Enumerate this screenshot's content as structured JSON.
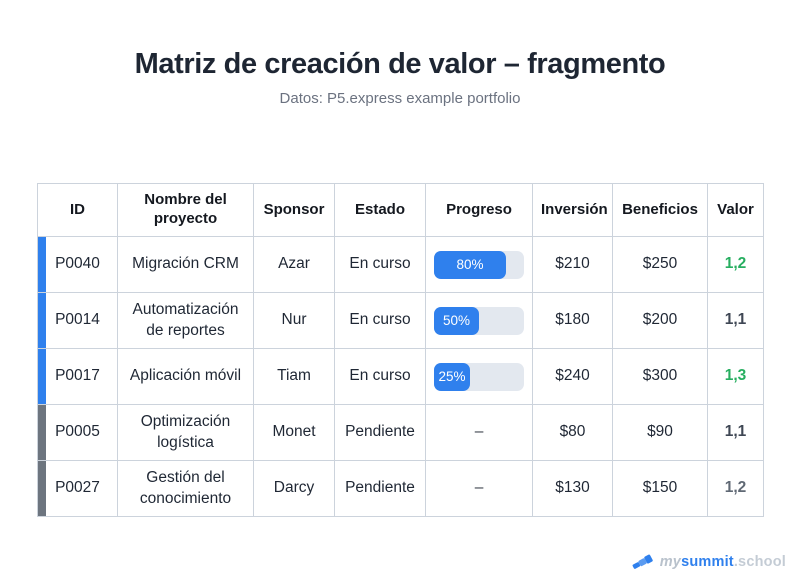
{
  "page": {
    "title": "Matriz de creación de valor – fragmento",
    "subtitle": "Datos: P5.express example portfolio"
  },
  "colors": {
    "accent_blue": "#2f80ed",
    "pending_gray": "#6d757f",
    "value_green": "#27ae60",
    "value_dark": "#3f4754",
    "value_gray": "#5f6874",
    "progress_track": "#e3e8ef",
    "title_dark": "#1e2633"
  },
  "table": {
    "columns": [
      "ID",
      "Nombre del proyecto",
      "Sponsor",
      "Estado",
      "Progreso",
      "Inversión",
      "Beneficios",
      "Valor"
    ],
    "rows": [
      {
        "id": "P0040",
        "name": "Migración CRM",
        "sponsor": "Azar",
        "status": "En curso",
        "progress_pct": 80,
        "progress_label": "80%",
        "inversion": "$210",
        "beneficios": "$250",
        "valor": "1,2",
        "valor_color": "#27ae60",
        "indicator_color": "#2f80ed"
      },
      {
        "id": "P0014",
        "name": "Automatización de reportes",
        "sponsor": "Nur",
        "status": "En curso",
        "progress_pct": 50,
        "progress_label": "50%",
        "inversion": "$180",
        "beneficios": "$200",
        "valor": "1,1",
        "valor_color": "#3f4754",
        "indicator_color": "#2f80ed"
      },
      {
        "id": "P0017",
        "name": "Aplicación móvil",
        "sponsor": "Tiam",
        "status": "En curso",
        "progress_pct": 25,
        "progress_label": "25%",
        "inversion": "$240",
        "beneficios": "$300",
        "valor": "1,3",
        "valor_color": "#27ae60",
        "indicator_color": "#2f80ed"
      },
      {
        "id": "P0005",
        "name": "Optimización logística",
        "sponsor": "Monet",
        "status": "Pendiente",
        "progress_display": "–",
        "inversion": "$80",
        "beneficios": "$90",
        "valor": "1,1",
        "valor_color": "#3f4754",
        "indicator_color": "#6d757f"
      },
      {
        "id": "P0027",
        "name": "Gestión del conocimiento",
        "sponsor": "Darcy",
        "status": "Pendiente",
        "progress_display": "–",
        "inversion": "$130",
        "beneficios": "$150",
        "valor": "1,2",
        "valor_color": "#5f6874",
        "indicator_color": "#6d757f"
      }
    ]
  },
  "footer": {
    "brand_prefix": "my",
    "brand_main": "summit",
    "brand_suffix": ".school",
    "logo_icon": "telescope-icon"
  },
  "chart_data": {
    "type": "table",
    "title": "Matriz de creación de valor – fragmento",
    "subtitle": "Datos: P5.express example portfolio",
    "columns": [
      "ID",
      "Nombre del proyecto",
      "Sponsor",
      "Estado",
      "Progreso",
      "Inversión",
      "Beneficios",
      "Valor"
    ],
    "rows": [
      [
        "P0040",
        "Migración CRM",
        "Azar",
        "En curso",
        "80%",
        "$210",
        "$250",
        "1,2"
      ],
      [
        "P0014",
        "Automatización de reportes",
        "Nur",
        "En curso",
        "50%",
        "$180",
        "$200",
        "1,1"
      ],
      [
        "P0017",
        "Aplicación móvil",
        "Tiam",
        "En curso",
        "25%",
        "$240",
        "$300",
        "1,3"
      ],
      [
        "P0005",
        "Optimización logística",
        "Monet",
        "Pendiente",
        "–",
        "$80",
        "$90",
        "1,1"
      ],
      [
        "P0027",
        "Gestión del conocimiento",
        "Darcy",
        "Pendiente",
        "–",
        "$130",
        "$150",
        "1,2"
      ]
    ]
  }
}
